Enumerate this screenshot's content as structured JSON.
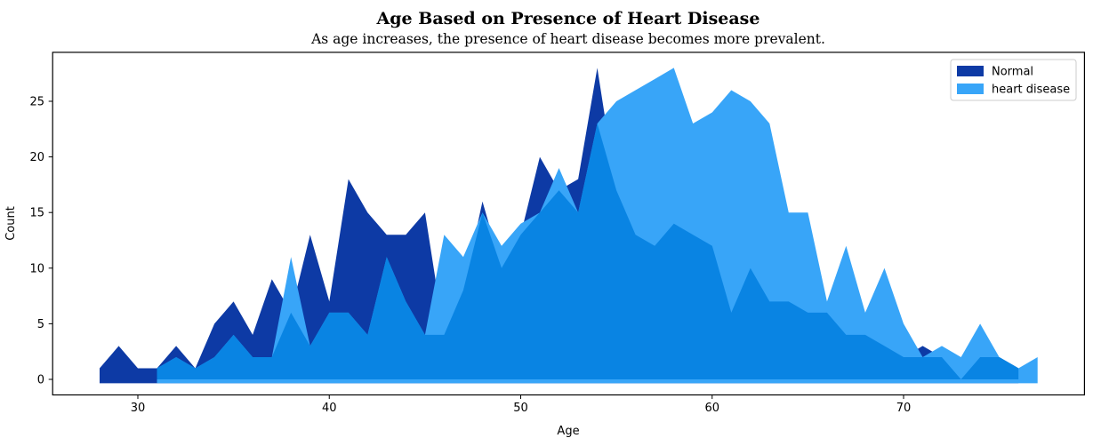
{
  "title": "Age Based on Presence of Heart Disease",
  "subtitle": "As age increases, the presence of heart disease becomes more prevalent.",
  "axes": {
    "xlabel": "Age",
    "ylabel": "Count",
    "x_ticks": [
      30,
      40,
      50,
      60,
      70
    ],
    "y_ticks": [
      0,
      5,
      10,
      15,
      20,
      25
    ],
    "xlim": [
      25.55,
      79.45
    ],
    "ylim": [
      -1.4,
      29.4
    ]
  },
  "legend": {
    "items": [
      {
        "label": "Normal",
        "color": "#0d3aa5"
      },
      {
        "label": "heart disease",
        "color": "#38a5f8"
      }
    ]
  },
  "colors": {
    "normal": "#0d3aa5",
    "heart_disease": "#38a5f8",
    "overlap": "#0984e3",
    "axis": "#000000",
    "legend_border": "#cccccc"
  },
  "chart_data": {
    "type": "area",
    "title": "Age Based on Presence of Heart Disease",
    "subtitle": "As age increases, the presence of heart disease becomes more prevalent.",
    "xlabel": "Age",
    "ylabel": "Count",
    "xlim": [
      25.55,
      79.45
    ],
    "ylim": [
      -1.4,
      29.4
    ],
    "grid": false,
    "legend_position": "upper right",
    "x": [
      28,
      29,
      30,
      31,
      32,
      33,
      34,
      35,
      36,
      37,
      38,
      39,
      40,
      41,
      42,
      43,
      44,
      45,
      46,
      47,
      48,
      49,
      50,
      51,
      52,
      53,
      54,
      55,
      56,
      57,
      58,
      59,
      60,
      61,
      62,
      63,
      64,
      65,
      66,
      67,
      68,
      69,
      70,
      71,
      72,
      73,
      74,
      75,
      76,
      77
    ],
    "series": [
      {
        "name": "Normal",
        "color": "#0d3aa5",
        "values": [
          1,
          3,
          1,
          1,
          3,
          1,
          5,
          7,
          4,
          9,
          6,
          13,
          7,
          18,
          15,
          13,
          13,
          15,
          4,
          8,
          16,
          10,
          13,
          20,
          17,
          18,
          28,
          17,
          13,
          12,
          14,
          13,
          12,
          6,
          10,
          7,
          7,
          6,
          6,
          4,
          4,
          3,
          2,
          3,
          2,
          0,
          2,
          2,
          1,
          0
        ]
      },
      {
        "name": "heart disease",
        "color": "#38a5f8",
        "values": [
          0,
          0,
          0,
          1,
          2,
          1,
          2,
          4,
          2,
          2,
          11,
          3,
          6,
          6,
          4,
          11,
          7,
          4,
          13,
          11,
          15,
          12,
          14,
          15,
          19,
          15,
          23,
          25,
          26,
          27,
          28,
          23,
          24,
          26,
          25,
          23,
          15,
          15,
          7,
          12,
          6,
          10,
          5,
          2,
          3,
          2,
          5,
          2,
          1,
          2
        ]
      }
    ],
    "overlap_color": "#0984e3"
  }
}
